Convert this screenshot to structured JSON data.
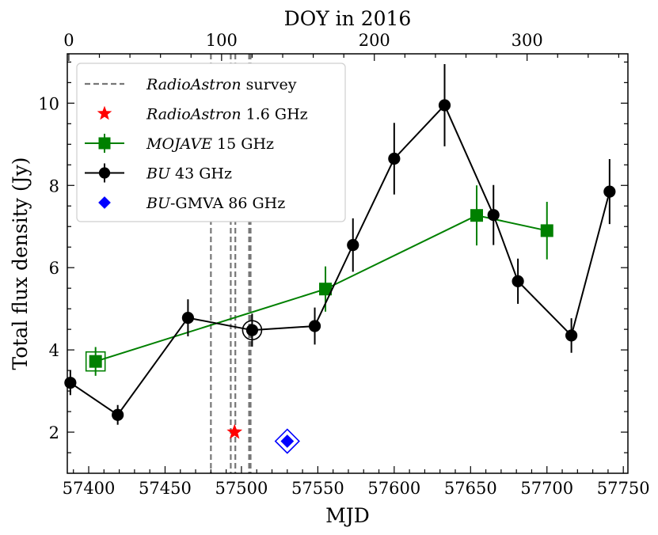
{
  "chart_data": {
    "type": "line",
    "xlabel": "MJD",
    "ylabel": "Total flux density (Jy)",
    "top_xlabel": "DOY in 2016",
    "xlim": [
      57386,
      57753
    ],
    "ylim": [
      1.0,
      11.2
    ],
    "x_ticks": [
      57400,
      57450,
      57500,
      57550,
      57600,
      57650,
      57700,
      57750
    ],
    "y_ticks": [
      2,
      4,
      6,
      8,
      10
    ],
    "top_ticks": [
      0,
      100,
      200,
      300
    ],
    "grid": false,
    "legend_position": "top-left",
    "legend": [
      {
        "italic": "RadioAstron",
        "rest": " survey"
      },
      {
        "italic": "RadioAstron",
        "rest": " 1.6 GHz"
      },
      {
        "italic": "MOJAVE",
        "rest": " 15 GHz"
      },
      {
        "italic": "BU",
        "rest": " 43 GHz"
      },
      {
        "italic": "BU",
        "rest": "-GMVA 86 GHz"
      }
    ],
    "survey_lines": [
      57480,
      57493,
      57496,
      57505,
      57506
    ],
    "series": [
      {
        "color": "#008000",
        "marker": "square",
        "points": [
          {
            "x": 57404.5,
            "y": 3.72,
            "err": 0.35,
            "ring": true
          },
          {
            "x": 57555,
            "y": 5.48,
            "err": 0.55
          },
          {
            "x": 57654,
            "y": 7.27,
            "err": 0.73
          },
          {
            "x": 57700,
            "y": 6.9,
            "err": 0.7
          }
        ]
      },
      {
        "color": "#000000",
        "marker": "circle",
        "points": [
          {
            "x": 57388,
            "y": 3.2,
            "err": 0.3
          },
          {
            "x": 57419,
            "y": 2.42,
            "err": 0.24
          },
          {
            "x": 57465,
            "y": 4.78,
            "err": 0.45
          },
          {
            "x": 57507,
            "y": 4.48,
            "err": 0.4,
            "ring": true
          },
          {
            "x": 57548,
            "y": 4.58,
            "err": 0.45
          },
          {
            "x": 57573,
            "y": 6.55,
            "err": 0.65
          },
          {
            "x": 57600,
            "y": 8.65,
            "err": 0.87
          },
          {
            "x": 57633,
            "y": 9.95,
            "err": 1.0
          },
          {
            "x": 57665,
            "y": 7.28,
            "err": 0.73
          },
          {
            "x": 57681,
            "y": 5.67,
            "err": 0.55
          },
          {
            "x": 57716,
            "y": 4.35,
            "err": 0.42
          },
          {
            "x": 57741,
            "y": 7.85,
            "err": 0.79
          }
        ]
      },
      {
        "color": "#ff0000",
        "marker": "star",
        "points": [
          {
            "x": 57495.5,
            "y": 2.0
          }
        ]
      },
      {
        "color": "#0000ff",
        "marker": "diamond",
        "points": [
          {
            "x": 57530,
            "y": 1.78,
            "ring": true
          }
        ]
      }
    ]
  }
}
